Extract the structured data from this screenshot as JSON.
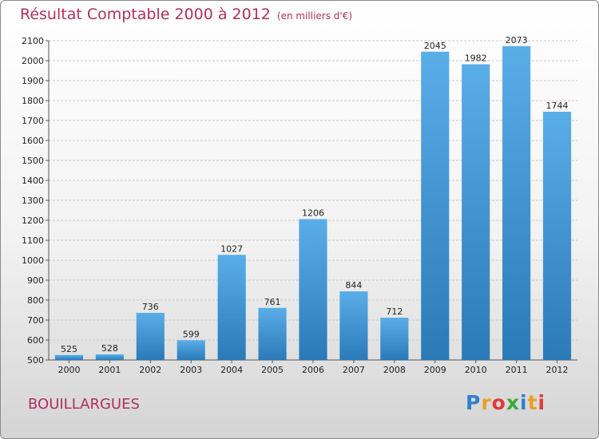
{
  "header": {
    "title": "Résultat Comptable 2000 à 2012",
    "subtitle": "(en milliers d'€)"
  },
  "footer": {
    "commune": "BOUILLARGUES",
    "logo_letters": [
      "P",
      "r",
      "o",
      "x",
      "i",
      "t",
      "i"
    ],
    "logo_colors": [
      "#2f7fd0",
      "#e8a020",
      "#e03a3a",
      "#3aa83a",
      "#2f7fd0",
      "#e8a020",
      "#e03a3a"
    ]
  },
  "colors": {
    "bar_light": "#5aaee8",
    "bar_dark": "#2a7ab8",
    "title": "#b0305e"
  },
  "chart_data": {
    "type": "bar",
    "title": "Résultat Comptable 2000 à 2012",
    "subtitle": "(en milliers d'€)",
    "categories": [
      "2000",
      "2001",
      "2002",
      "2003",
      "2004",
      "2005",
      "2006",
      "2007",
      "2008",
      "2009",
      "2010",
      "2011",
      "2012"
    ],
    "values": [
      525,
      528,
      736,
      599,
      1027,
      761,
      1206,
      844,
      712,
      2045,
      1982,
      2073,
      1744
    ],
    "ylim": [
      500,
      2100
    ],
    "yticks": [
      500,
      600,
      700,
      800,
      900,
      1000,
      1100,
      1200,
      1300,
      1400,
      1500,
      1600,
      1700,
      1800,
      1900,
      2000,
      2100
    ],
    "grid": true,
    "xlabel": "",
    "ylabel": ""
  }
}
